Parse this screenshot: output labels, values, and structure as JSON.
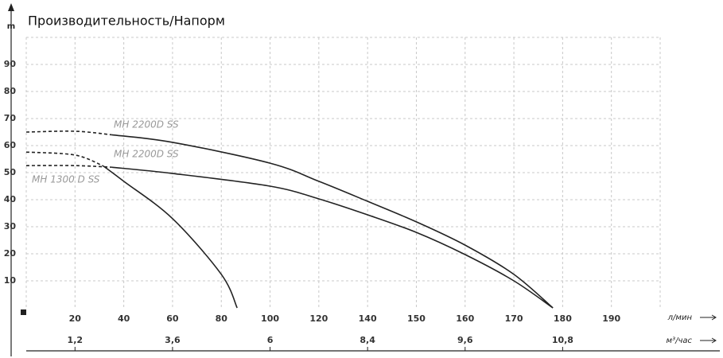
{
  "chart_data": {
    "type": "line",
    "title": "Производительность/Напорм",
    "y_label": "m",
    "x_label": "л/мин",
    "x2_label": "м³/час",
    "xlim": [
      0,
      200
    ],
    "xticks": [
      20,
      40,
      60,
      80,
      100,
      120,
      140,
      150,
      160,
      170,
      180,
      190
    ],
    "x2lim": [
      0,
      12
    ],
    "x2ticks": [
      {
        "value": 1.2,
        "label": "1,2"
      },
      {
        "value": 3.6,
        "label": "3,6"
      },
      6,
      {
        "value": 8.4,
        "label": "8,4"
      },
      {
        "value": 9.6,
        "label": "9,6"
      },
      {
        "value": 10.8,
        "label": "10,8"
      }
    ],
    "ylim": [
      0,
      100
    ],
    "yticks": [
      10,
      20,
      30,
      40,
      50,
      60,
      70,
      80,
      90
    ],
    "grid": true,
    "series": [
      {
        "name": "MH 2200D SS",
        "color": "#222222",
        "x": [
          0,
          20,
          35,
          60,
          100,
          120,
          140,
          150,
          160,
          170,
          178
        ],
        "values": [
          65,
          65.3,
          64,
          61.2,
          53.5,
          46.8,
          39.4,
          31.8,
          23.2,
          12.4,
          0
        ]
      },
      {
        "name": "MH 2200D SS",
        "color": "#222222",
        "x": [
          0,
          20,
          35,
          60,
          100,
          120,
          140,
          150,
          160,
          170,
          178
        ],
        "values": [
          52.6,
          52.6,
          52,
          49.7,
          45,
          40.3,
          34.4,
          27.9,
          19.7,
          10,
          0
        ]
      },
      {
        "name": "MH 1300 D SS",
        "color": "#222222",
        "x": [
          0,
          20,
          31.7,
          40,
          60,
          80,
          86.5
        ],
        "values": [
          57.6,
          56.5,
          52.4,
          46.8,
          33,
          12.4,
          0
        ]
      }
    ]
  }
}
